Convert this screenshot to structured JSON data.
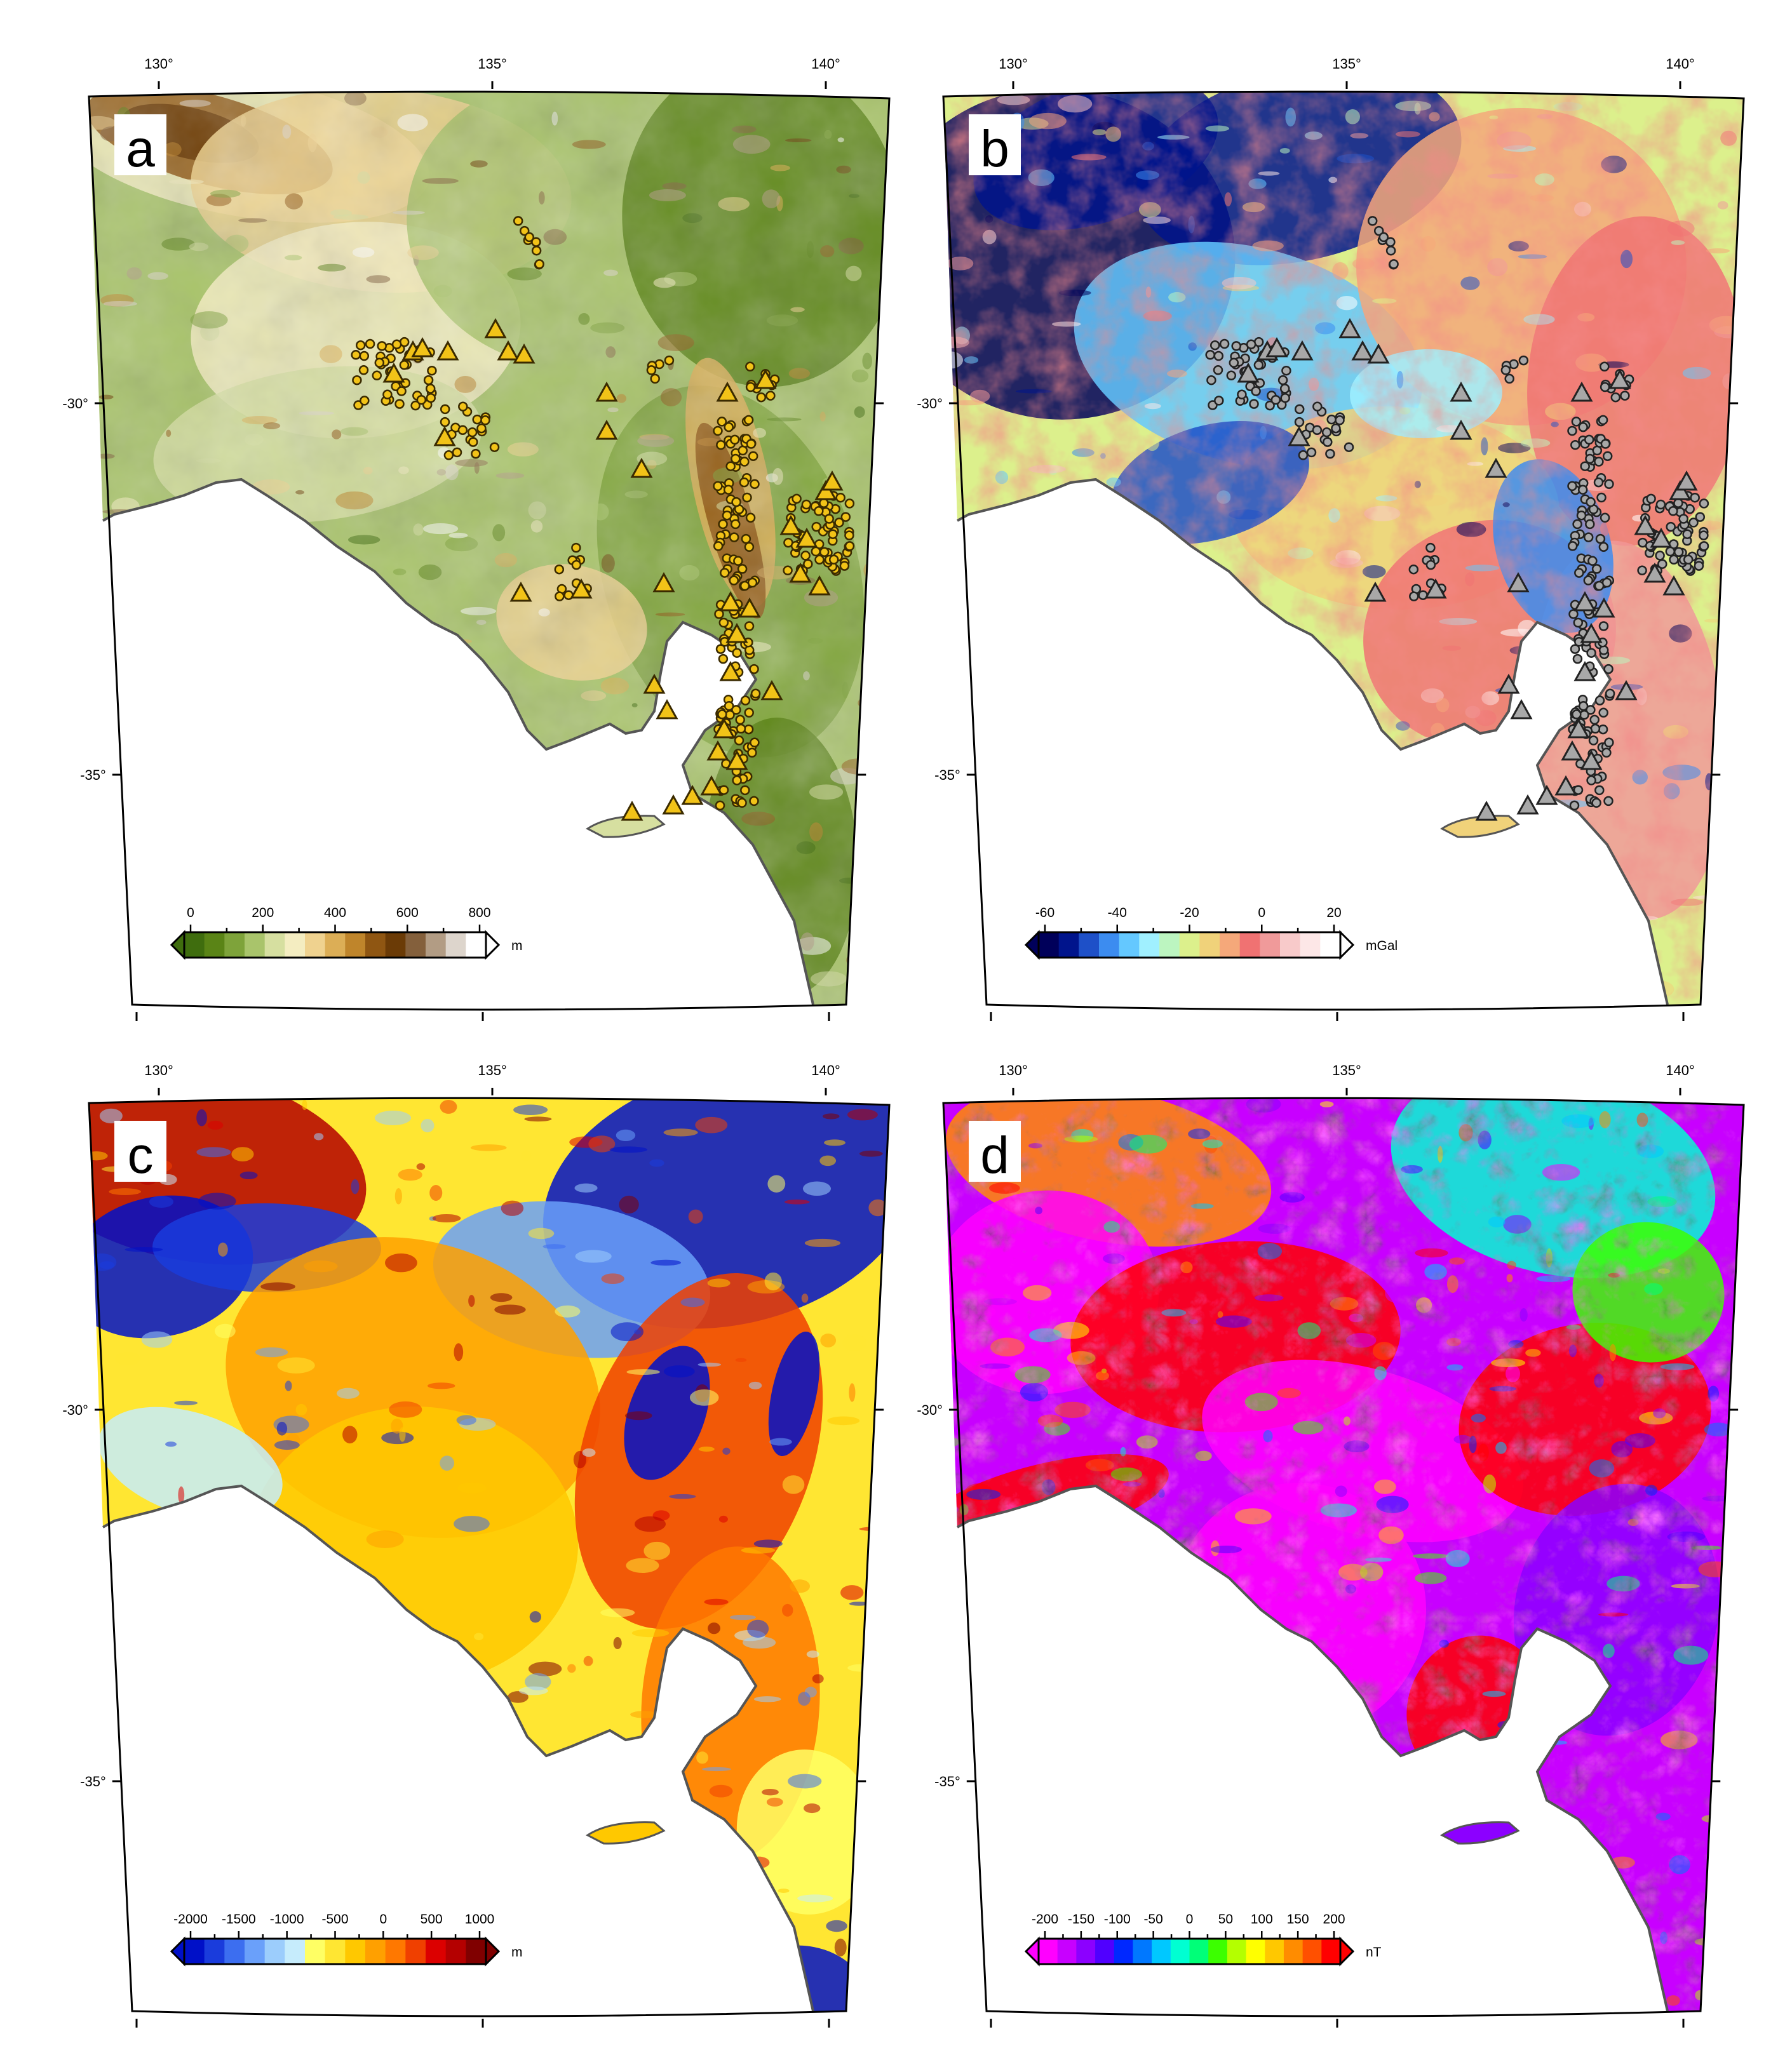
{
  "figure": {
    "panels": [
      {
        "id": "a",
        "letter": "a",
        "lon_labels": [
          "130°",
          "135°",
          "140°"
        ],
        "lat_labels": [
          "-30°",
          "-35°"
        ],
        "colorbar": {
          "ticks": [
            "0",
            "200",
            "400",
            "600",
            "800"
          ],
          "unit": "m",
          "colors": [
            "#3f6d0e",
            "#5a8416",
            "#7ea33a",
            "#a9c46b",
            "#d6dfa0",
            "#f4edc1",
            "#efd28f",
            "#dcae56",
            "#bf852b",
            "#8f5612",
            "#6b3b06",
            "#84603c",
            "#b29c84",
            "#ddd5cc",
            "#ffffff"
          ]
        },
        "markers": {
          "fill": "#f2c318",
          "stroke": "#3a2a00"
        }
      },
      {
        "id": "b",
        "letter": "b",
        "lon_labels": [
          "130°",
          "135°",
          "140°"
        ],
        "lat_labels": [
          "-30°",
          "-35°"
        ],
        "colorbar": {
          "ticks": [
            "-60",
            "-40",
            "-20",
            "0",
            "20"
          ],
          "unit": "mGal",
          "colors": [
            "#00005a",
            "#00148c",
            "#1e50c8",
            "#3c8cf0",
            "#64c8ff",
            "#a0f0ff",
            "#bcf5c0",
            "#dcf08c",
            "#f0d27a",
            "#f5a87a",
            "#f07272",
            "#f09a9a",
            "#f8caca",
            "#fde7e7",
            "#ffffff"
          ]
        },
        "markers": {
          "fill": "#a8a8a8",
          "stroke": "#222222"
        }
      },
      {
        "id": "c",
        "letter": "c",
        "lon_labels": [
          "130°",
          "135°",
          "140°"
        ],
        "lat_labels": [
          "-30°",
          "-35°"
        ],
        "colorbar": {
          "ticks": [
            "-2000",
            "-1500",
            "-1000",
            "-500",
            "0",
            "500",
            "1000"
          ],
          "unit": "m",
          "colors": [
            "#0010c8",
            "#1a3cdc",
            "#3c6ef0",
            "#6aa0fa",
            "#9ccdfc",
            "#c6ecfc",
            "#ffff64",
            "#ffe632",
            "#ffc800",
            "#ffa000",
            "#ff7800",
            "#f04000",
            "#dc0000",
            "#b40000",
            "#800000"
          ]
        },
        "markers": null
      },
      {
        "id": "d",
        "letter": "d",
        "lon_labels": [
          "130°",
          "135°",
          "140°"
        ],
        "lat_labels": [
          "-30°",
          "-35°"
        ],
        "colorbar": {
          "ticks": [
            "-200",
            "-150",
            "-100",
            "-50",
            "0",
            "50",
            "100",
            "150",
            "200"
          ],
          "unit": "nT",
          "colors": [
            "#ff00ff",
            "#c800ff",
            "#8c00ff",
            "#5000ff",
            "#0028ff",
            "#0078ff",
            "#00c8ff",
            "#00ffd2",
            "#00ff78",
            "#3cff00",
            "#b4ff00",
            "#ffff00",
            "#ffc800",
            "#ff8c00",
            "#ff5000",
            "#ff0000"
          ]
        },
        "markers": null
      }
    ]
  }
}
